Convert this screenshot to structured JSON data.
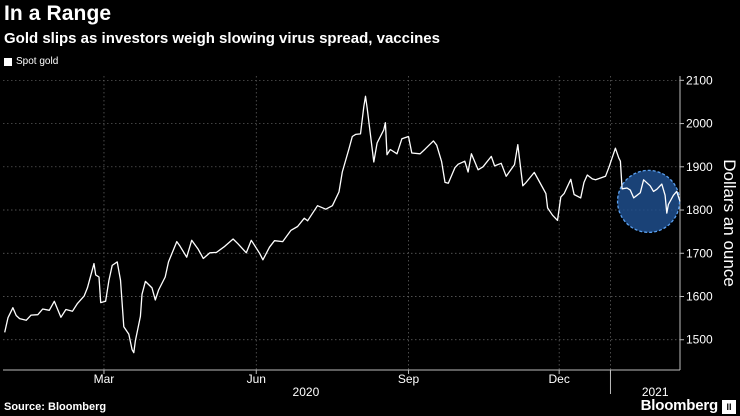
{
  "header": {
    "title": "In a Range",
    "subtitle": "Gold slips as investors weigh slowing virus spread, vaccines"
  },
  "footer": {
    "source": "Source: Bloomberg",
    "brand": "Bloomberg",
    "brand_mark": "II"
  },
  "colors": {
    "background": "#000000",
    "line": "#ffffff",
    "highlight_fill": "#1f4e8c",
    "highlight_stroke": "#5aa0f0"
  },
  "chart_data": {
    "type": "line",
    "title": "In a Range",
    "subtitle": "Gold slips as investors weigh slowing virus spread, vaccines",
    "ylabel": "Dollars an ounce",
    "ylim": [
      1430,
      2110
    ],
    "yticks": [
      1500,
      1600,
      1700,
      1800,
      1900,
      2000,
      2100
    ],
    "x_range": [
      "2019-12-31",
      "2021-02-12"
    ],
    "x_ticks": [
      {
        "date": "2020-03-01",
        "label": "Mar"
      },
      {
        "date": "2020-06-01",
        "label": "Jun"
      },
      {
        "date": "2020-09-01",
        "label": "Sep"
      },
      {
        "date": "2020-12-01",
        "label": "Dec"
      },
      {
        "date": "2021-01-01",
        "label": ""
      }
    ],
    "year_labels": [
      {
        "date": "2020-07-01",
        "label": "2020"
      },
      {
        "date": "2021-01-28",
        "label": "2021"
      }
    ],
    "grid": true,
    "legend_position": "top-left",
    "highlight": {
      "shape": "circle",
      "center_date": "2021-01-24",
      "center_value": 1820
    },
    "series": [
      {
        "name": "Spot gold",
        "points": [
          [
            "2020-01-01",
            1517
          ],
          [
            "2020-01-03",
            1551
          ],
          [
            "2020-01-06",
            1574
          ],
          [
            "2020-01-08",
            1556
          ],
          [
            "2020-01-10",
            1549
          ],
          [
            "2020-01-14",
            1545
          ],
          [
            "2020-01-17",
            1557
          ],
          [
            "2020-01-21",
            1558
          ],
          [
            "2020-01-24",
            1571
          ],
          [
            "2020-01-28",
            1568
          ],
          [
            "2020-01-31",
            1589
          ],
          [
            "2020-02-04",
            1552
          ],
          [
            "2020-02-07",
            1570
          ],
          [
            "2020-02-11",
            1566
          ],
          [
            "2020-02-14",
            1584
          ],
          [
            "2020-02-18",
            1601
          ],
          [
            "2020-02-20",
            1620
          ],
          [
            "2020-02-24",
            1676
          ],
          [
            "2020-02-25",
            1650
          ],
          [
            "2020-02-27",
            1645
          ],
          [
            "2020-02-28",
            1586
          ],
          [
            "2020-03-02",
            1589
          ],
          [
            "2020-03-04",
            1637
          ],
          [
            "2020-03-06",
            1672
          ],
          [
            "2020-03-09",
            1680
          ],
          [
            "2020-03-11",
            1638
          ],
          [
            "2020-03-13",
            1530
          ],
          [
            "2020-03-16",
            1513
          ],
          [
            "2020-03-18",
            1477
          ],
          [
            "2020-03-19",
            1470
          ],
          [
            "2020-03-20",
            1498
          ],
          [
            "2020-03-23",
            1554
          ],
          [
            "2020-03-24",
            1605
          ],
          [
            "2020-03-26",
            1635
          ],
          [
            "2020-03-30",
            1620
          ],
          [
            "2020-04-01",
            1592
          ],
          [
            "2020-04-03",
            1615
          ],
          [
            "2020-04-07",
            1645
          ],
          [
            "2020-04-09",
            1680
          ],
          [
            "2020-04-14",
            1727
          ],
          [
            "2020-04-16",
            1716
          ],
          [
            "2020-04-20",
            1691
          ],
          [
            "2020-04-23",
            1730
          ],
          [
            "2020-04-27",
            1709
          ],
          [
            "2020-04-30",
            1688
          ],
          [
            "2020-05-04",
            1701
          ],
          [
            "2020-05-08",
            1702
          ],
          [
            "2020-05-13",
            1716
          ],
          [
            "2020-05-18",
            1733
          ],
          [
            "2020-05-21",
            1722
          ],
          [
            "2020-05-26",
            1701
          ],
          [
            "2020-05-29",
            1730
          ],
          [
            "2020-06-03",
            1700
          ],
          [
            "2020-06-05",
            1685
          ],
          [
            "2020-06-09",
            1714
          ],
          [
            "2020-06-12",
            1729
          ],
          [
            "2020-06-17",
            1727
          ],
          [
            "2020-06-22",
            1753
          ],
          [
            "2020-06-26",
            1762
          ],
          [
            "2020-06-30",
            1781
          ],
          [
            "2020-07-02",
            1775
          ],
          [
            "2020-07-08",
            1810
          ],
          [
            "2020-07-13",
            1802
          ],
          [
            "2020-07-17",
            1810
          ],
          [
            "2020-07-21",
            1842
          ],
          [
            "2020-07-23",
            1888
          ],
          [
            "2020-07-27",
            1941
          ],
          [
            "2020-07-29",
            1970
          ],
          [
            "2020-07-31",
            1975
          ],
          [
            "2020-08-03",
            1976
          ],
          [
            "2020-08-05",
            2039
          ],
          [
            "2020-08-06",
            2063
          ],
          [
            "2020-08-07",
            2035
          ],
          [
            "2020-08-11",
            1911
          ],
          [
            "2020-08-13",
            1955
          ],
          [
            "2020-08-17",
            1985
          ],
          [
            "2020-08-18",
            2002
          ],
          [
            "2020-08-19",
            1928
          ],
          [
            "2020-08-21",
            1940
          ],
          [
            "2020-08-25",
            1930
          ],
          [
            "2020-08-28",
            1965
          ],
          [
            "2020-09-01",
            1970
          ],
          [
            "2020-09-03",
            1932
          ],
          [
            "2020-09-08",
            1930
          ],
          [
            "2020-09-11",
            1941
          ],
          [
            "2020-09-16",
            1960
          ],
          [
            "2020-09-18",
            1950
          ],
          [
            "2020-09-21",
            1912
          ],
          [
            "2020-09-23",
            1864
          ],
          [
            "2020-09-25",
            1862
          ],
          [
            "2020-09-29",
            1898
          ],
          [
            "2020-10-01",
            1906
          ],
          [
            "2020-10-05",
            1913
          ],
          [
            "2020-10-07",
            1888
          ],
          [
            "2020-10-09",
            1930
          ],
          [
            "2020-10-13",
            1893
          ],
          [
            "2020-10-16",
            1900
          ],
          [
            "2020-10-21",
            1924
          ],
          [
            "2020-10-23",
            1902
          ],
          [
            "2020-10-27",
            1908
          ],
          [
            "2020-10-30",
            1878
          ],
          [
            "2020-11-04",
            1905
          ],
          [
            "2020-11-06",
            1951
          ],
          [
            "2020-11-09",
            1856
          ],
          [
            "2020-11-11",
            1864
          ],
          [
            "2020-11-16",
            1887
          ],
          [
            "2020-11-19",
            1866
          ],
          [
            "2020-11-23",
            1838
          ],
          [
            "2020-11-24",
            1805
          ],
          [
            "2020-11-27",
            1788
          ],
          [
            "2020-11-30",
            1776
          ],
          [
            "2020-12-02",
            1830
          ],
          [
            "2020-12-04",
            1838
          ],
          [
            "2020-12-08",
            1871
          ],
          [
            "2020-12-10",
            1836
          ],
          [
            "2020-12-14",
            1828
          ],
          [
            "2020-12-16",
            1864
          ],
          [
            "2020-12-18",
            1881
          ],
          [
            "2020-12-21",
            1872
          ],
          [
            "2020-12-23",
            1870
          ],
          [
            "2020-12-29",
            1878
          ],
          [
            "2020-12-31",
            1898
          ],
          [
            "2021-01-04",
            1943
          ],
          [
            "2021-01-06",
            1920
          ],
          [
            "2021-01-07",
            1913
          ],
          [
            "2021-01-08",
            1849
          ],
          [
            "2021-01-11",
            1851
          ],
          [
            "2021-01-13",
            1846
          ],
          [
            "2021-01-15",
            1828
          ],
          [
            "2021-01-19",
            1840
          ],
          [
            "2021-01-21",
            1870
          ],
          [
            "2021-01-25",
            1856
          ],
          [
            "2021-01-27",
            1843
          ],
          [
            "2021-01-29",
            1848
          ],
          [
            "2021-02-01",
            1860
          ],
          [
            "2021-02-03",
            1834
          ],
          [
            "2021-02-04",
            1793
          ],
          [
            "2021-02-05",
            1813
          ],
          [
            "2021-02-08",
            1834
          ],
          [
            "2021-02-10",
            1843
          ],
          [
            "2021-02-12",
            1820
          ]
        ]
      }
    ]
  }
}
